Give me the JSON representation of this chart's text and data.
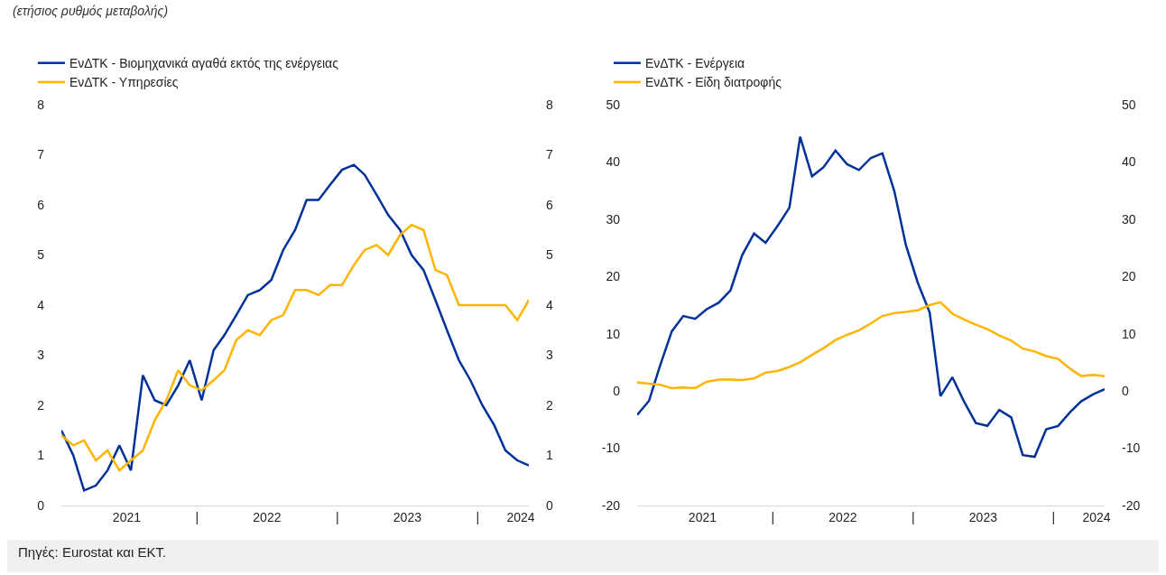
{
  "chart_data": [
    {
      "type": "line",
      "title": "(ετήσιος ρυθμός μεταβολής)",
      "annotations": [
        "Πηγές: Eurostat και ΕΚΤ."
      ],
      "legend": "top left",
      "grid": false,
      "marker": "none",
      "line_style": "solid",
      "x": [
        "2021-01",
        "2021-02",
        "2021-03",
        "2021-04",
        "2021-05",
        "2021-06",
        "2021-07",
        "2021-08",
        "2021-09",
        "2021-10",
        "2021-11",
        "2021-12",
        "2022-01",
        "2022-02",
        "2022-03",
        "2022-04",
        "2022-05",
        "2022-06",
        "2022-07",
        "2022-08",
        "2022-09",
        "2022-10",
        "2022-11",
        "2022-12",
        "2023-01",
        "2023-02",
        "2023-03",
        "2023-04",
        "2023-05",
        "2023-06",
        "2023-07",
        "2023-08",
        "2023-09",
        "2023-10",
        "2023-11",
        "2023-12",
        "2024-01",
        "2024-02",
        "2024-03",
        "2024-04",
        "2024-05"
      ],
      "series": [
        {
          "name": "ΕνΔΤΚ - Βιομηχανικά αγαθά εκτός της ενέργειας",
          "color": "#003299",
          "values": [
            1.5,
            1.0,
            0.3,
            0.4,
            0.7,
            1.2,
            0.7,
            2.6,
            2.1,
            2.0,
            2.4,
            2.9,
            2.1,
            3.1,
            3.4,
            3.8,
            4.2,
            4.3,
            4.5,
            5.1,
            5.5,
            6.1,
            6.1,
            6.4,
            6.7,
            6.8,
            6.6,
            6.2,
            5.8,
            5.5,
            5.0,
            4.7,
            4.1,
            3.5,
            2.9,
            2.5,
            2.0,
            1.6,
            1.1,
            0.9,
            0.8
          ]
        },
        {
          "name": "ΕνΔΤΚ - Υπηρεσίες",
          "color": "#ffb400",
          "values": [
            1.4,
            1.2,
            1.3,
            0.9,
            1.1,
            0.7,
            0.9,
            1.1,
            1.7,
            2.1,
            2.7,
            2.4,
            2.3,
            2.5,
            2.7,
            3.3,
            3.5,
            3.4,
            3.7,
            3.8,
            4.3,
            4.3,
            4.2,
            4.4,
            4.4,
            4.8,
            5.1,
            5.2,
            5.0,
            5.4,
            5.6,
            5.5,
            4.7,
            4.6,
            4.0,
            4.0,
            4.0,
            4.0,
            4.0,
            3.7,
            4.1
          ]
        }
      ],
      "xlim": [
        "2021-01",
        "2024-05"
      ],
      "xticks": [
        {
          "value": "2021-06-20",
          "label": "2021"
        },
        {
          "value": "2021-12-20",
          "label": "|"
        },
        {
          "value": "2022-06-20",
          "label": "2022"
        },
        {
          "value": "2022-12-20",
          "label": "|"
        },
        {
          "value": "2023-06-20",
          "label": "2023"
        },
        {
          "value": "2023-12-20",
          "label": "|"
        },
        {
          "value": "2024-04-10",
          "label": "2024"
        }
      ],
      "ylim": [
        0,
        8
      ],
      "yticks": [
        0,
        1,
        2,
        3,
        4,
        5,
        6,
        7,
        8
      ],
      "y2lim": [
        0,
        8
      ],
      "y2ticks": [
        0,
        1,
        2,
        3,
        4,
        5,
        6,
        7,
        8
      ]
    },
    {
      "type": "line",
      "legend": "top left",
      "grid": false,
      "marker": "none",
      "line_style": "solid",
      "x": [
        "2021-01",
        "2021-02",
        "2021-03",
        "2021-04",
        "2021-05",
        "2021-06",
        "2021-07",
        "2021-08",
        "2021-09",
        "2021-10",
        "2021-11",
        "2021-12",
        "2022-01",
        "2022-02",
        "2022-03",
        "2022-04",
        "2022-05",
        "2022-06",
        "2022-07",
        "2022-08",
        "2022-09",
        "2022-10",
        "2022-11",
        "2022-12",
        "2023-01",
        "2023-02",
        "2023-03",
        "2023-04",
        "2023-05",
        "2023-06",
        "2023-07",
        "2023-08",
        "2023-09",
        "2023-10",
        "2023-11",
        "2023-12",
        "2024-01",
        "2024-02",
        "2024-03",
        "2024-04",
        "2024-05"
      ],
      "series": [
        {
          "name": "ΕνΔΤΚ - Ενέργεια",
          "color": "#003299",
          "values": [
            -4.2,
            -1.7,
            4.3,
            10.4,
            13.1,
            12.6,
            14.3,
            15.4,
            17.6,
            23.7,
            27.5,
            25.9,
            28.8,
            32.0,
            44.4,
            37.5,
            39.1,
            42.0,
            39.6,
            38.6,
            40.7,
            41.5,
            34.9,
            25.5,
            18.9,
            13.7,
            -0.9,
            2.4,
            -1.8,
            -5.6,
            -6.1,
            -3.3,
            -4.6,
            -11.2,
            -11.5,
            -6.7,
            -6.1,
            -3.7,
            -1.8,
            -0.6,
            0.3
          ]
        },
        {
          "name": "ΕνΔΤΚ - Είδη διατροφής",
          "color": "#ffb400",
          "values": [
            1.5,
            1.3,
            1.1,
            0.5,
            0.6,
            0.5,
            1.6,
            2.0,
            2.0,
            1.9,
            2.2,
            3.2,
            3.5,
            4.2,
            5.0,
            6.3,
            7.5,
            8.9,
            9.8,
            10.6,
            11.8,
            13.1,
            13.6,
            13.8,
            14.1,
            15.0,
            15.5,
            13.5,
            12.5,
            11.6,
            10.8,
            9.7,
            8.8,
            7.4,
            6.9,
            6.1,
            5.6,
            3.9,
            2.6,
            2.8,
            2.6
          ]
        }
      ],
      "xlim": [
        "2021-01",
        "2024-05"
      ],
      "xticks": [
        {
          "value": "2021-06-20",
          "label": "2021"
        },
        {
          "value": "2021-12-20",
          "label": "|"
        },
        {
          "value": "2022-06-20",
          "label": "2022"
        },
        {
          "value": "2022-12-20",
          "label": "|"
        },
        {
          "value": "2023-06-20",
          "label": "2023"
        },
        {
          "value": "2023-12-20",
          "label": "|"
        },
        {
          "value": "2024-04-10",
          "label": "2024"
        }
      ],
      "ylim": [
        -20,
        50
      ],
      "yticks": [
        -20,
        -10,
        0,
        10,
        20,
        30,
        40,
        50
      ],
      "y2lim": [
        -20,
        50
      ],
      "y2ticks": [
        -20,
        -10,
        0,
        10,
        20,
        30,
        40,
        50
      ]
    }
  ]
}
